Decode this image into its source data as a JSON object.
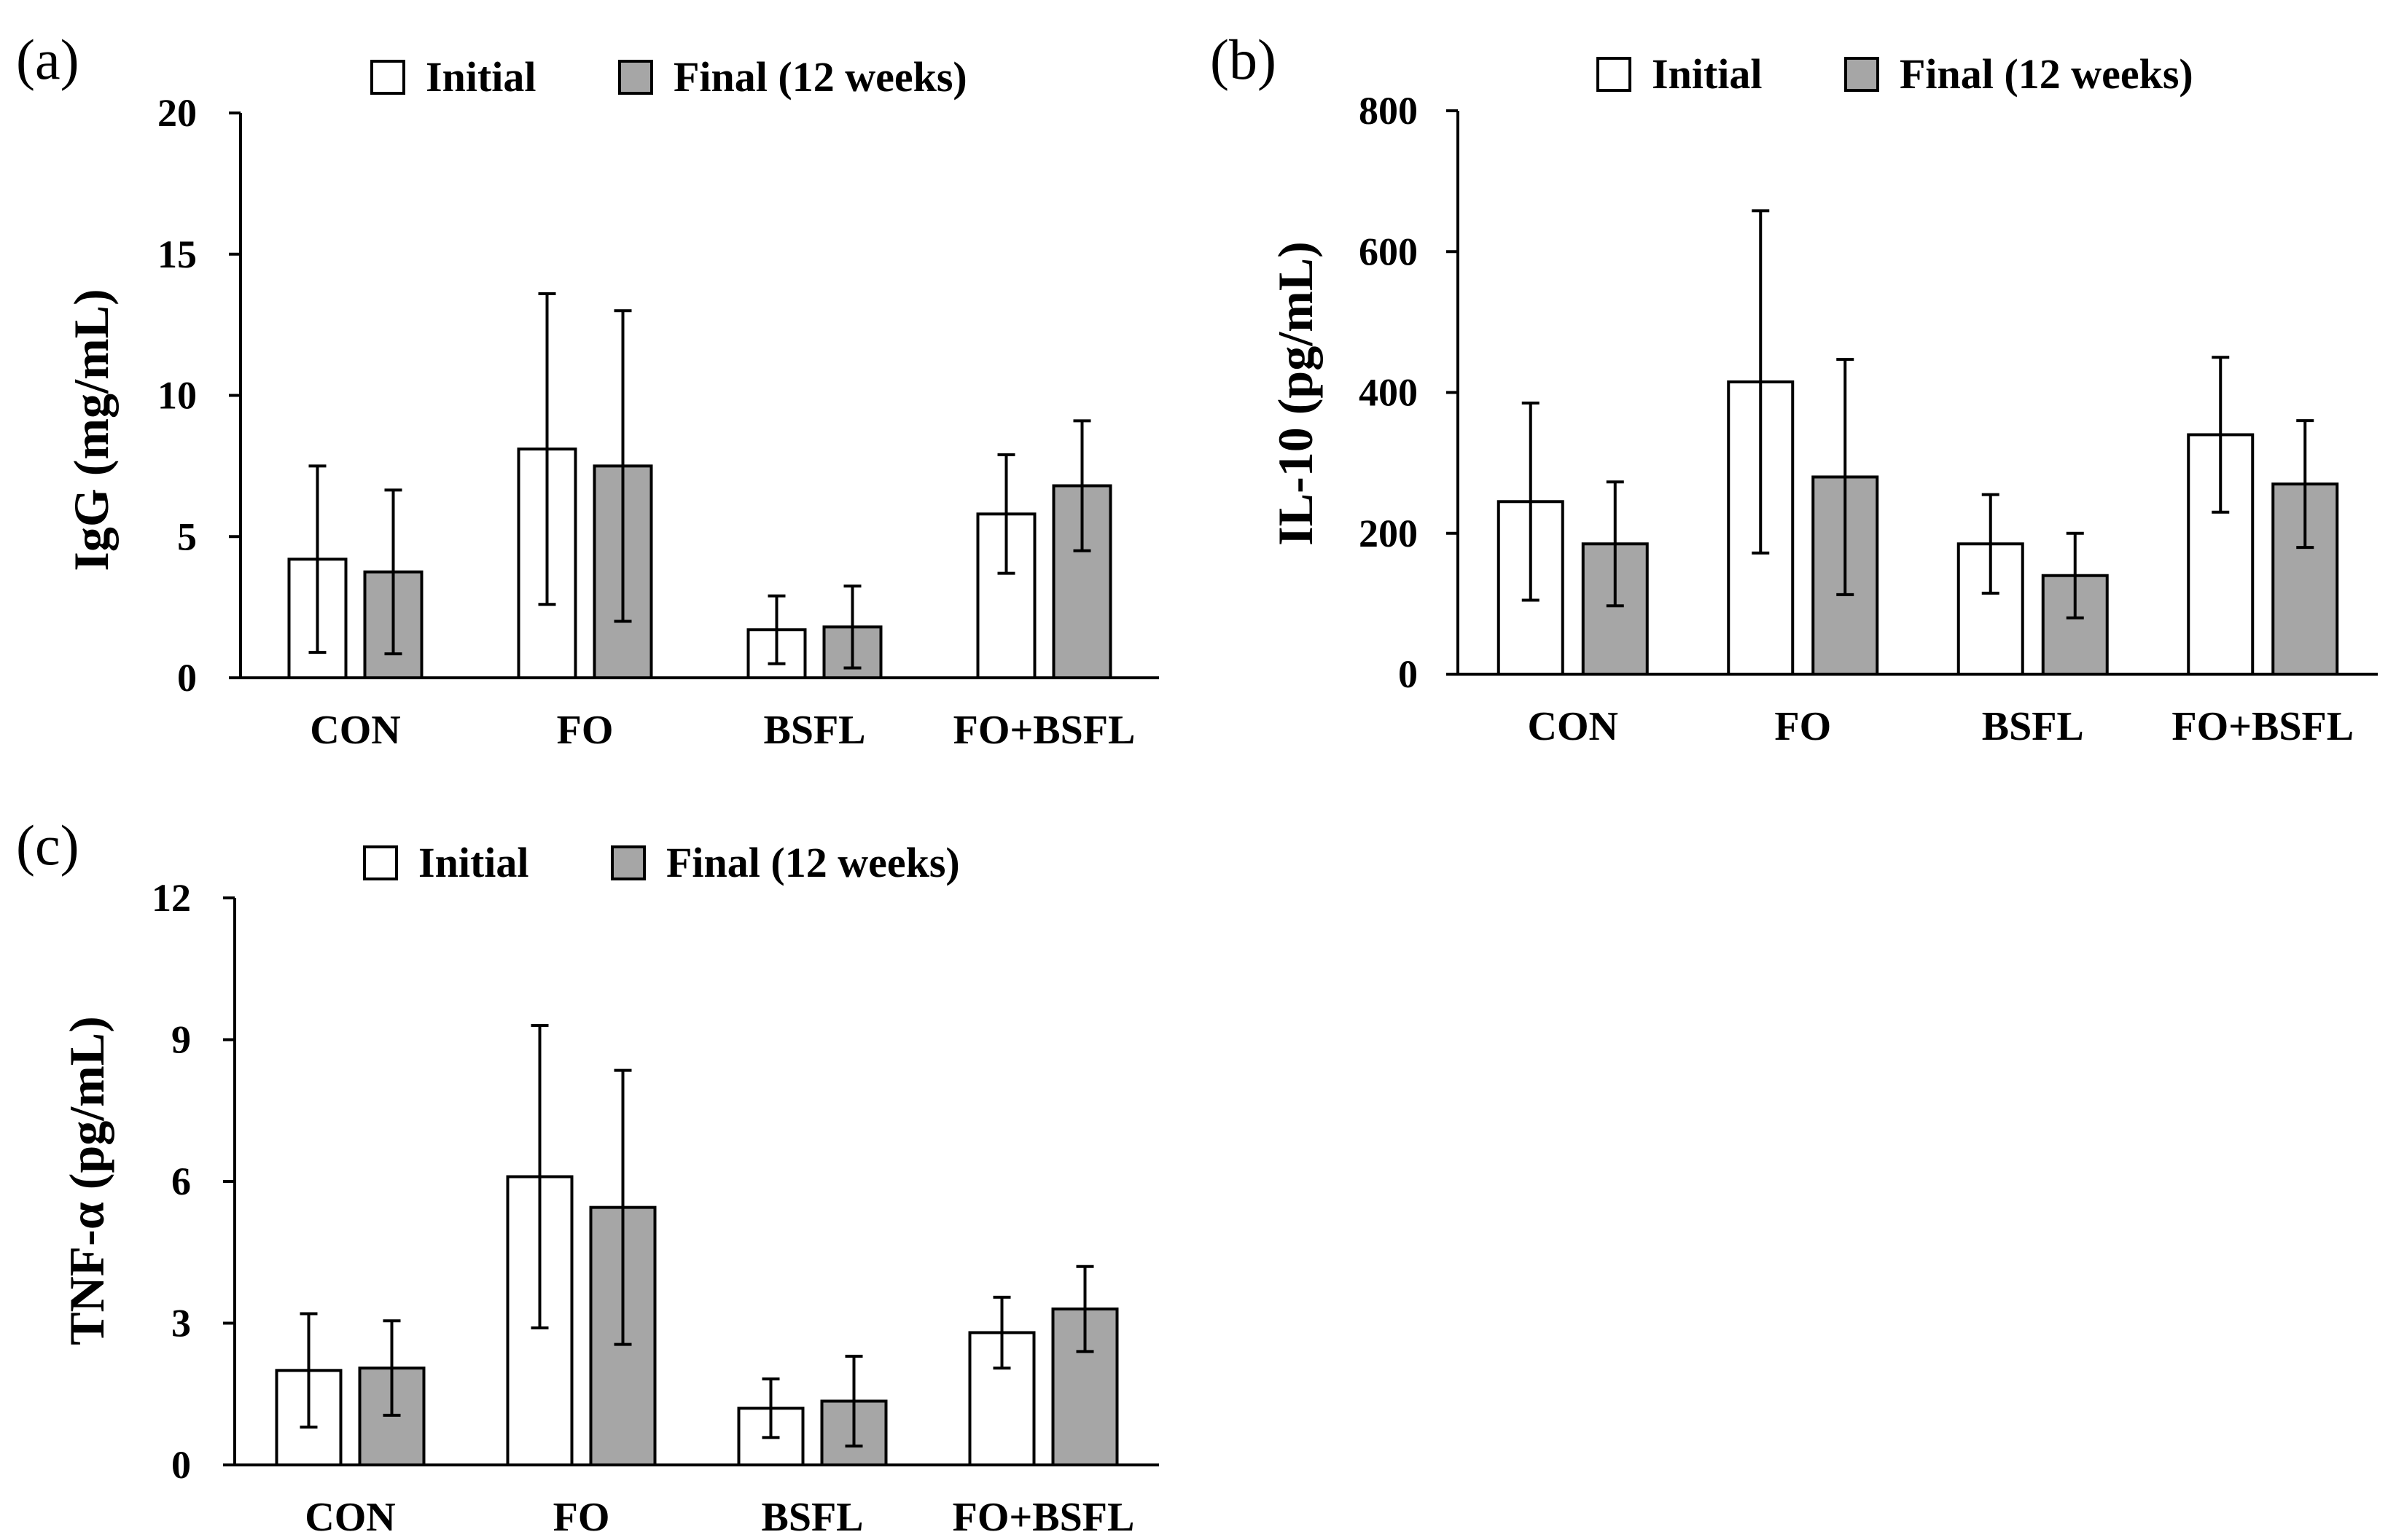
{
  "colors": {
    "initial": "#ffffff",
    "final": "#a6a6a6",
    "stroke": "#000000"
  },
  "chart_data": [
    {
      "panel": "(a)",
      "type": "bar",
      "categories": [
        "CON",
        "FO",
        "BSFL",
        "FO+BSFL"
      ],
      "series": [
        {
          "name": "Initial",
          "values": [
            4.2,
            8.1,
            1.7,
            5.8
          ],
          "errors": [
            3.3,
            5.5,
            1.2,
            2.1
          ]
        },
        {
          "name": "Final (12 weeks)",
          "values": [
            3.75,
            7.5,
            1.8,
            6.8
          ],
          "errors": [
            2.9,
            5.5,
            1.45,
            2.3
          ]
        }
      ],
      "ylabel": "IgG (mg/mL)",
      "ylim": [
        0,
        20
      ],
      "yticks": [
        "0",
        "5",
        "10",
        "15",
        "20"
      ],
      "grid": false,
      "legend": "top-center"
    },
    {
      "panel": "(b)",
      "type": "bar",
      "categories": [
        "CON",
        "FO",
        "BSFL",
        "FO+BSFL"
      ],
      "series": [
        {
          "name": "Initial",
          "values": [
            245,
            415,
            185,
            340
          ],
          "errors": [
            140,
            243,
            70,
            110
          ]
        },
        {
          "name": "Final (12 weeks)",
          "values": [
            185,
            280,
            140,
            270
          ],
          "errors": [
            88,
            167,
            60,
            90
          ]
        }
      ],
      "ylabel": "IL-10 (pg/mL)",
      "ylim": [
        0,
        800
      ],
      "yticks": [
        "0",
        "200",
        "400",
        "600",
        "800"
      ],
      "grid": false,
      "legend": "top-center"
    },
    {
      "panel": "(c)",
      "type": "bar",
      "categories": [
        "CON",
        "FO",
        "BSFL",
        "FO+BSFL"
      ],
      "series": [
        {
          "name": "Initial",
          "values": [
            2.0,
            6.1,
            1.2,
            2.8
          ],
          "errors": [
            1.2,
            3.2,
            0.62,
            0.75
          ]
        },
        {
          "name": "Final (12 weeks)",
          "values": [
            2.05,
            5.45,
            1.35,
            3.3
          ],
          "errors": [
            1.0,
            2.9,
            0.95,
            0.9
          ]
        }
      ],
      "ylabel": "TNF-α (pg/mL)",
      "ylim": [
        0,
        12
      ],
      "yticks": [
        "0",
        "3",
        "6",
        "9",
        "12"
      ],
      "grid": false,
      "legend": "top-center"
    }
  ]
}
